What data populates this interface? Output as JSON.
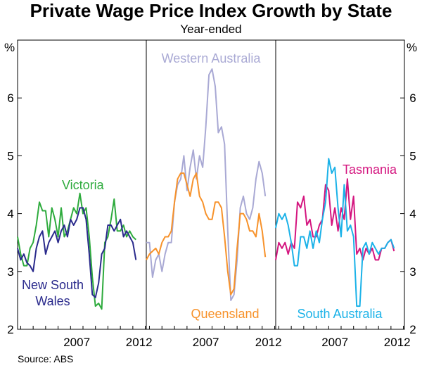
{
  "chart_data": {
    "type": "line",
    "title": "Private Wage Price Index Growth by State",
    "subtitle": "Year-ended",
    "y_unit": "%",
    "ylim": [
      2,
      7
    ],
    "y_ticks": [
      "2",
      "3",
      "4",
      "5",
      "6"
    ],
    "x_tick_labels": [
      "2007",
      "2012"
    ],
    "source": "Source: ABS",
    "grid": false,
    "panels": [
      {
        "series": [
          {
            "name": "Victoria",
            "color": "#2eab3d",
            "x": [
              2002.75,
              2003,
              2003.25,
              2003.5,
              2003.75,
              2004,
              2004.25,
              2004.5,
              2004.75,
              2005,
              2005.25,
              2005.5,
              2005.75,
              2006,
              2006.25,
              2006.5,
              2006.75,
              2007,
              2007.25,
              2007.5,
              2007.75,
              2008,
              2008.25,
              2008.5,
              2008.75,
              2009,
              2009.25,
              2009.5,
              2009.75,
              2010,
              2010.25,
              2010.5,
              2010.75,
              2011,
              2011.25,
              2011.5,
              2011.75,
              2012,
              2012.25
            ],
            "values": [
              3.6,
              3.3,
              3.1,
              3.1,
              3.4,
              3.5,
              3.8,
              4.2,
              4.05,
              4.05,
              3.6,
              4.1,
              3.9,
              3.6,
              4.1,
              3.6,
              3.7,
              3.9,
              4.1,
              4.0,
              4.35,
              4.0,
              4.1,
              3.6,
              2.9,
              2.4,
              2.45,
              2.35,
              3.5,
              3.6,
              3.9,
              4.25,
              3.7,
              3.7,
              3.8,
              3.6,
              3.7,
              3.6,
              3.55
            ]
          },
          {
            "name": "New South Wales",
            "color": "#2a2a8c",
            "x": [
              2002.75,
              2003,
              2003.25,
              2003.5,
              2003.75,
              2004,
              2004.25,
              2004.5,
              2004.75,
              2005,
              2005.25,
              2005.5,
              2005.75,
              2006,
              2006.25,
              2006.5,
              2006.75,
              2007,
              2007.25,
              2007.5,
              2007.75,
              2008,
              2008.25,
              2008.5,
              2008.75,
              2009,
              2009.25,
              2009.5,
              2009.75,
              2010,
              2010.25,
              2010.5,
              2010.75,
              2011,
              2011.25,
              2011.5,
              2011.75,
              2012,
              2012.25
            ],
            "values": [
              3.4,
              3.2,
              3.3,
              3.15,
              3.1,
              3.0,
              3.4,
              3.6,
              3.7,
              3.3,
              3.5,
              3.6,
              3.7,
              3.5,
              3.7,
              3.8,
              3.6,
              3.9,
              3.8,
              3.9,
              4.1,
              4.1,
              3.9,
              3.3,
              2.6,
              2.55,
              2.8,
              3.3,
              3.4,
              3.8,
              3.8,
              3.7,
              3.8,
              3.9,
              3.6,
              3.7,
              3.6,
              3.5,
              3.2
            ]
          }
        ],
        "labels": [
          {
            "text": "Victoria",
            "series": "Victoria"
          },
          {
            "lines": [
              "New South",
              "Wales"
            ],
            "series": "New South Wales"
          }
        ]
      },
      {
        "series": [
          {
            "name": "Western Australia",
            "color": "#a9a9d4",
            "x": [
              2002.75,
              2003,
              2003.25,
              2003.5,
              2003.75,
              2004,
              2004.25,
              2004.5,
              2004.75,
              2005,
              2005.25,
              2005.5,
              2005.75,
              2006,
              2006.25,
              2006.5,
              2006.75,
              2007,
              2007.25,
              2007.5,
              2007.75,
              2008,
              2008.25,
              2008.5,
              2008.75,
              2009,
              2009.25,
              2009.5,
              2009.75,
              2010,
              2010.25,
              2010.5,
              2010.75,
              2011,
              2011.25,
              2011.5,
              2011.75,
              2012,
              2012.25
            ],
            "values": [
              3.5,
              3.5,
              2.9,
              3.2,
              3.3,
              3.0,
              3.3,
              3.5,
              3.5,
              4.2,
              4.5,
              4.6,
              5.0,
              4.4,
              4.8,
              5.1,
              4.6,
              5.0,
              4.8,
              5.5,
              6.4,
              6.5,
              6.2,
              5.4,
              5.5,
              5.2,
              3.7,
              2.5,
              2.6,
              3.2,
              4.1,
              4.3,
              4.0,
              3.9,
              4.1,
              4.6,
              4.9,
              4.7,
              4.3
            ]
          },
          {
            "name": "Queensland",
            "color": "#f7922b",
            "x": [
              2002.75,
              2003,
              2003.25,
              2003.5,
              2003.75,
              2004,
              2004.25,
              2004.5,
              2004.75,
              2005,
              2005.25,
              2005.5,
              2005.75,
              2006,
              2006.25,
              2006.5,
              2006.75,
              2007,
              2007.25,
              2007.5,
              2007.75,
              2008,
              2008.25,
              2008.5,
              2008.75,
              2009,
              2009.25,
              2009.5,
              2009.75,
              2010,
              2010.25,
              2010.5,
              2010.75,
              2011,
              2011.25,
              2011.5,
              2011.75,
              2012,
              2012.25
            ],
            "values": [
              3.2,
              3.3,
              3.35,
              3.4,
              3.3,
              3.5,
              3.6,
              3.6,
              3.7,
              4.2,
              4.6,
              4.7,
              4.7,
              4.5,
              4.3,
              4.6,
              4.7,
              4.3,
              4.2,
              4.0,
              3.9,
              3.9,
              4.2,
              4.2,
              4.1,
              3.6,
              3.0,
              2.6,
              2.7,
              3.4,
              4.0,
              4.0,
              3.9,
              3.7,
              3.7,
              3.6,
              4.0,
              3.7,
              3.25
            ]
          }
        ],
        "labels": [
          {
            "text": "Western Australia",
            "series": "Western Australia"
          },
          {
            "text": "Queensland",
            "series": "Queensland"
          }
        ]
      },
      {
        "series": [
          {
            "name": "Tasmania",
            "color": "#d4157f",
            "x": [
              2002.75,
              2003,
              2003.25,
              2003.5,
              2003.75,
              2004,
              2004.25,
              2004.5,
              2004.75,
              2005,
              2005.25,
              2005.5,
              2005.75,
              2006,
              2006.25,
              2006.5,
              2006.75,
              2007,
              2007.25,
              2007.5,
              2007.75,
              2008,
              2008.25,
              2008.5,
              2008.75,
              2009,
              2009.25,
              2009.5,
              2009.75,
              2010,
              2010.25,
              2010.5,
              2010.75,
              2011,
              2011.25,
              2011.5,
              2011.75,
              2012,
              2012.25
            ],
            "values": [
              3.2,
              3.5,
              3.4,
              3.5,
              3.3,
              3.5,
              3.4,
              4.2,
              4.1,
              4.3,
              3.8,
              3.9,
              3.6,
              3.6,
              3.8,
              3.9,
              4.5,
              4.4,
              3.8,
              4.1,
              3.7,
              4.1,
              3.9,
              4.6,
              3.9,
              4.3,
              3.3,
              3.4,
              3.2,
              3.4,
              3.3,
              3.4,
              3.2,
              3.2,
              3.4,
              3.4,
              3.5,
              3.55,
              3.35
            ]
          },
          {
            "name": "South Australia",
            "color": "#1bb2e8",
            "x": [
              2002.75,
              2003,
              2003.25,
              2003.5,
              2003.75,
              2004,
              2004.25,
              2004.5,
              2004.75,
              2005,
              2005.25,
              2005.5,
              2005.75,
              2006,
              2006.25,
              2006.5,
              2006.75,
              2007,
              2007.25,
              2007.5,
              2007.75,
              2008,
              2008.25,
              2008.5,
              2008.75,
              2009,
              2009.25,
              2009.5,
              2009.75,
              2010,
              2010.25,
              2010.5,
              2010.75,
              2011,
              2011.25,
              2011.5,
              2011.75,
              2012,
              2012.25
            ],
            "values": [
              3.75,
              4.0,
              3.9,
              4.0,
              3.8,
              3.5,
              3.1,
              3.1,
              3.6,
              3.6,
              3.4,
              3.7,
              3.4,
              3.7,
              3.5,
              3.9,
              4.2,
              4.95,
              4.7,
              4.8,
              4.1,
              3.6,
              4.5,
              3.7,
              3.8,
              3.6,
              2.4,
              2.4,
              3.4,
              3.5,
              3.3,
              3.5,
              3.4,
              3.3,
              3.4,
              3.4,
              3.5,
              3.55,
              3.4
            ]
          }
        ],
        "labels": [
          {
            "text": "Tasmania",
            "series": "Tasmania"
          },
          {
            "text": "South Australia",
            "series": "South Australia"
          }
        ]
      }
    ]
  }
}
